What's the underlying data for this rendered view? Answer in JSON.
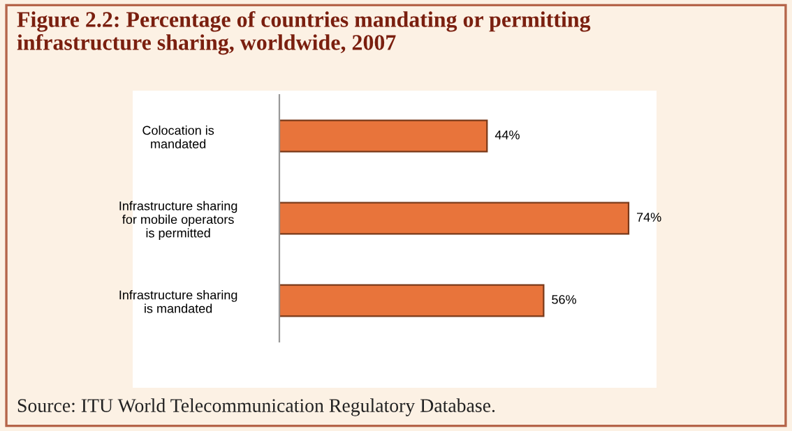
{
  "chart_data": {
    "type": "bar",
    "orientation": "horizontal",
    "title": "Figure 2.2: Percentage of countries mandating or permitting\ninfrastructure sharing, worldwide, 2007",
    "categories": [
      "Colocation is\nmandated",
      "Infrastructure sharing\nfor mobile operators\nis permitted",
      "Infrastructure sharing\nis mandated"
    ],
    "values": [
      44,
      74,
      56
    ],
    "value_labels": [
      "44%",
      "74%",
      "56%"
    ],
    "color": "#e8743b",
    "grid": false,
    "legend": false,
    "tick_labels": "y",
    "annotations": [
      "Source: ITU World Telecommunication Regulatory Database."
    ]
  }
}
